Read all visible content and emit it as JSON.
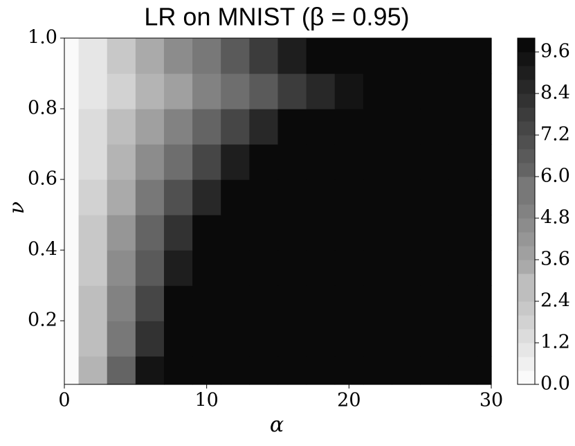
{
  "chart_data": {
    "type": "contour",
    "title": "LR on MNIST (β = 0.95)",
    "x_label": "α",
    "y_label": "ν",
    "x": [
      0,
      2,
      4,
      6,
      8,
      10,
      12,
      14,
      16,
      18,
      20,
      22,
      24,
      26,
      28,
      30
    ],
    "y": [
      0.05,
      0.15,
      0.25,
      0.35,
      0.45,
      0.55,
      0.65,
      0.75,
      0.85,
      0.95
    ],
    "z": [
      [
        0,
        3.1,
        6.2,
        9.2,
        10,
        10,
        10,
        10,
        10,
        10,
        10,
        10,
        10,
        10,
        10,
        10
      ],
      [
        0,
        2.7,
        5.5,
        8.2,
        10,
        10,
        10,
        10,
        10,
        10,
        10,
        10,
        10,
        10,
        10,
        10
      ],
      [
        0,
        2.5,
        5,
        7.5,
        10,
        10,
        10,
        10,
        10,
        10,
        10,
        10,
        10,
        10,
        10,
        10
      ],
      [
        0,
        2.2,
        4.4,
        6.7,
        8.9,
        10,
        10,
        10,
        10,
        10,
        10,
        10,
        10,
        10,
        10,
        10
      ],
      [
        0,
        2,
        4,
        6,
        8,
        10,
        10,
        10,
        10,
        10,
        10,
        10,
        10,
        10,
        10,
        10
      ],
      [
        0,
        1.7,
        3.5,
        5.2,
        7,
        8.7,
        10,
        10,
        10,
        10,
        10,
        10,
        10,
        10,
        10,
        10
      ],
      [
        0,
        1.5,
        3,
        4.4,
        5.9,
        7.4,
        8.9,
        10,
        10,
        10,
        10,
        10,
        10,
        10,
        10,
        10
      ],
      [
        0,
        1.2,
        2.4,
        3.6,
        4.8,
        6.1,
        7.3,
        8.5,
        9.7,
        10,
        10,
        10,
        10,
        10,
        10,
        10
      ],
      [
        0,
        1,
        1.9,
        2.9,
        3.8,
        4.8,
        5.7,
        6.7,
        7.6,
        8.6,
        9.5,
        10,
        10,
        10,
        10,
        10
      ],
      [
        0,
        1.1,
        2.2,
        3.3,
        4.4,
        5.6,
        6.7,
        7.8,
        8.9,
        10,
        10,
        10,
        10,
        10,
        10,
        10
      ]
    ],
    "xlim": [
      0,
      30
    ],
    "xticks": [
      0,
      10,
      20,
      30
    ],
    "ylim": [
      0.02,
      1.0
    ],
    "yticks": [
      0.2,
      0.4,
      0.6,
      0.8,
      {
        "value": 1.0,
        "label": "1.0"
      }
    ],
    "zlim": [
      0,
      10
    ],
    "zticks": [
      {
        "value": 0,
        "label": "0.0"
      },
      1.2,
      2.4,
      3.6,
      4.8,
      {
        "value": 6,
        "label": "6.0"
      },
      7.2,
      8.4,
      9.6
    ]
  }
}
